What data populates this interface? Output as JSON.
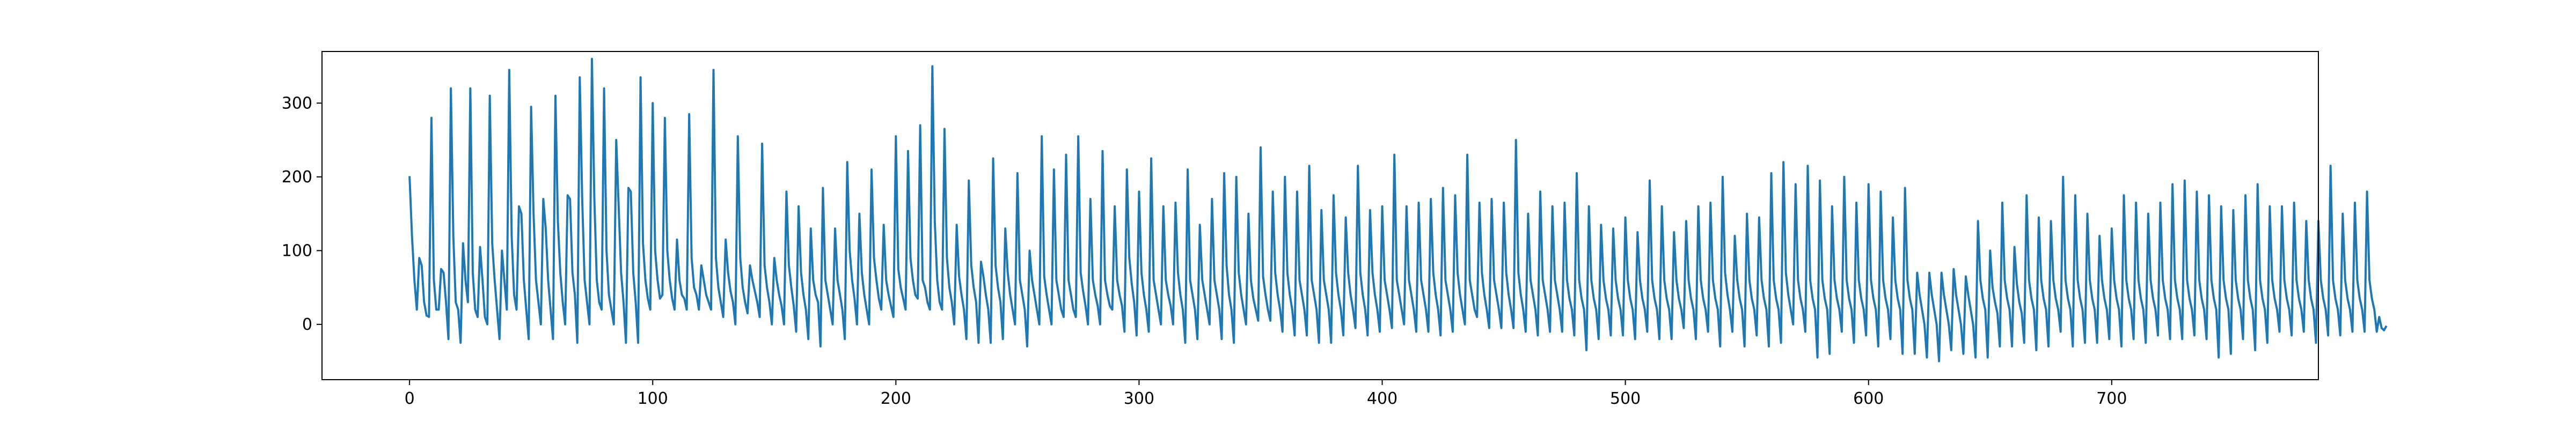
{
  "chart_data": {
    "type": "line",
    "title": "",
    "xlabel": "",
    "ylabel": "",
    "xlim": [
      -36,
      785
    ],
    "ylim": [
      -75,
      370
    ],
    "x_ticks": [
      0,
      100,
      200,
      300,
      400,
      500,
      600,
      700
    ],
    "y_ticks": [
      0,
      100,
      200,
      300
    ],
    "grid": false,
    "legend": "none",
    "line_color": "#1f77b4",
    "x_start": 0,
    "x_step": 1,
    "points": 750,
    "series": [
      {
        "values": [
          201,
          120,
          60,
          20,
          90,
          80,
          30,
          12,
          10,
          280,
          60,
          20,
          20,
          75,
          70,
          30,
          -20,
          320,
          120,
          30,
          20,
          -25,
          110,
          60,
          30,
          320,
          70,
          20,
          10,
          105,
          60,
          10,
          0,
          310,
          110,
          60,
          20,
          -20,
          100,
          60,
          20,
          345,
          120,
          40,
          20,
          160,
          150,
          60,
          20,
          -20,
          295,
          150,
          60,
          30,
          0,
          170,
          130,
          60,
          20,
          -20,
          310,
          140,
          70,
          30,
          0,
          175,
          170,
          70,
          40,
          -25,
          335,
          170,
          60,
          30,
          0,
          360,
          170,
          60,
          30,
          20,
          320,
          100,
          40,
          20,
          0,
          250,
          160,
          70,
          30,
          -25,
          185,
          180,
          70,
          30,
          -25,
          335,
          110,
          60,
          35,
          20,
          300,
          100,
          60,
          35,
          40,
          280,
          100,
          60,
          35,
          20,
          115,
          60,
          40,
          35,
          20,
          285,
          90,
          50,
          40,
          20,
          80,
          60,
          40,
          30,
          20,
          345,
          90,
          50,
          30,
          10,
          115,
          70,
          45,
          30,
          0,
          255,
          90,
          50,
          30,
          15,
          80,
          60,
          45,
          30,
          10,
          245,
          80,
          50,
          30,
          0,
          90,
          60,
          40,
          25,
          0,
          180,
          80,
          50,
          25,
          -10,
          160,
          70,
          40,
          20,
          -20,
          130,
          60,
          40,
          30,
          -30,
          185,
          60,
          40,
          20,
          0,
          130,
          60,
          40,
          20,
          -20,
          220,
          100,
          60,
          35,
          0,
          150,
          70,
          40,
          20,
          0,
          210,
          90,
          60,
          35,
          20,
          135,
          60,
          40,
          25,
          10,
          255,
          75,
          50,
          35,
          20,
          235,
          90,
          60,
          40,
          35,
          270,
          60,
          50,
          30,
          20,
          350,
          140,
          60,
          30,
          20,
          265,
          90,
          50,
          30,
          0,
          135,
          65,
          40,
          20,
          -20,
          195,
          80,
          50,
          30,
          -25,
          85,
          65,
          40,
          20,
          -25,
          225,
          80,
          50,
          30,
          -20,
          130,
          70,
          40,
          20,
          0,
          205,
          60,
          40,
          20,
          -30,
          100,
          60,
          40,
          20,
          0,
          255,
          65,
          40,
          20,
          0,
          210,
          60,
          40,
          20,
          10,
          230,
          60,
          40,
          20,
          10,
          255,
          70,
          45,
          25,
          0,
          170,
          60,
          40,
          25,
          0,
          235,
          60,
          40,
          25,
          20,
          160,
          60,
          40,
          25,
          -10,
          210,
          90,
          55,
          30,
          -15,
          180,
          70,
          40,
          20,
          -10,
          225,
          60,
          40,
          20,
          0,
          160,
          60,
          40,
          25,
          0,
          165,
          70,
          40,
          20,
          -25,
          210,
          60,
          40,
          20,
          -20,
          135,
          60,
          40,
          20,
          0,
          170,
          60,
          40,
          20,
          -20,
          205,
          80,
          40,
          20,
          -25,
          200,
          70,
          40,
          20,
          0,
          150,
          60,
          35,
          20,
          5,
          240,
          65,
          40,
          20,
          5,
          180,
          70,
          40,
          20,
          -10,
          200,
          70,
          40,
          20,
          -15,
          180,
          60,
          40,
          20,
          -15,
          215,
          60,
          40,
          20,
          -25,
          155,
          60,
          40,
          20,
          -25,
          175,
          70,
          40,
          20,
          -15,
          145,
          70,
          40,
          20,
          -5,
          215,
          70,
          40,
          20,
          -15,
          155,
          70,
          40,
          20,
          -10,
          160,
          60,
          40,
          20,
          -5,
          230,
          60,
          40,
          20,
          0,
          160,
          60,
          40,
          20,
          -10,
          165,
          60,
          40,
          20,
          -10,
          170,
          70,
          40,
          20,
          -15,
          185,
          60,
          40,
          20,
          -10,
          175,
          70,
          40,
          20,
          0,
          230,
          60,
          40,
          20,
          10,
          165,
          70,
          40,
          20,
          -5,
          170,
          60,
          40,
          20,
          -5,
          165,
          70,
          40,
          20,
          -5,
          250,
          70,
          40,
          20,
          -10,
          150,
          60,
          40,
          20,
          -15,
          180,
          60,
          40,
          20,
          -10,
          160,
          60,
          40,
          20,
          -10,
          165,
          60,
          35,
          20,
          -15,
          205,
          60,
          35,
          20,
          -35,
          160,
          60,
          35,
          20,
          -20,
          135,
          60,
          35,
          20,
          -15,
          130,
          60,
          35,
          20,
          -15,
          145,
          60,
          35,
          20,
          -20,
          125,
          60,
          35,
          20,
          -10,
          195,
          60,
          35,
          20,
          -20,
          160,
          60,
          35,
          20,
          -20,
          125,
          60,
          35,
          20,
          -5,
          140,
          60,
          35,
          20,
          -20,
          160,
          60,
          35,
          20,
          -10,
          165,
          60,
          35,
          20,
          -30,
          200,
          70,
          40,
          20,
          -10,
          120,
          60,
          35,
          20,
          -30,
          150,
          60,
          35,
          20,
          -15,
          145,
          60,
          35,
          20,
          -30,
          205,
          60,
          35,
          20,
          -25,
          220,
          70,
          40,
          20,
          0,
          190,
          60,
          35,
          20,
          -10,
          215,
          60,
          35,
          20,
          -45,
          195,
          60,
          35,
          20,
          -40,
          160,
          60,
          35,
          20,
          -10,
          200,
          60,
          35,
          20,
          -25,
          165,
          60,
          35,
          20,
          -15,
          190,
          60,
          35,
          20,
          -30,
          180,
          60,
          35,
          20,
          -20,
          145,
          60,
          35,
          20,
          -40,
          185,
          60,
          35,
          20,
          -40,
          70,
          40,
          20,
          0,
          -45,
          70,
          40,
          20,
          0,
          -50,
          70,
          40,
          20,
          0,
          -35,
          75,
          40,
          20,
          0,
          -40,
          65,
          40,
          20,
          0,
          -45,
          140,
          60,
          35,
          20,
          -45,
          100,
          50,
          30,
          15,
          -30,
          165,
          60,
          35,
          20,
          -30,
          105,
          55,
          30,
          15,
          -25,
          175,
          60,
          35,
          20,
          -35,
          145,
          60,
          35,
          20,
          -30,
          140,
          60,
          35,
          20,
          -10,
          200,
          60,
          35,
          20,
          -30,
          175,
          60,
          35,
          20,
          -25,
          150,
          60,
          35,
          20,
          -25,
          120,
          60,
          35,
          20,
          -20,
          130,
          60,
          35,
          20,
          -30,
          175,
          60,
          35,
          20,
          -20,
          165,
          60,
          35,
          20,
          -25,
          150,
          60,
          35,
          20,
          -15,
          165,
          60,
          35,
          20,
          -20,
          190,
          60,
          35,
          20,
          -20,
          195,
          60,
          35,
          20,
          -15,
          180,
          60,
          35,
          20,
          -20,
          175,
          60,
          35,
          20,
          -45,
          160,
          60,
          35,
          20,
          -40,
          155,
          60,
          35,
          20,
          -20,
          175,
          60,
          35,
          20,
          -35,
          190,
          60,
          35,
          20,
          -25,
          160,
          60,
          35,
          20,
          -10,
          160,
          60,
          35,
          20,
          -15,
          165,
          60,
          35,
          20,
          -10,
          140,
          60,
          35,
          20,
          -25,
          140,
          60,
          35,
          20,
          -15,
          215,
          60,
          35,
          20,
          -15,
          150,
          60,
          35,
          20,
          -10,
          165,
          60,
          35,
          20,
          -10,
          180,
          60,
          35,
          20,
          -10,
          10,
          -5,
          -8,
          -2
        ]
      }
    ]
  }
}
